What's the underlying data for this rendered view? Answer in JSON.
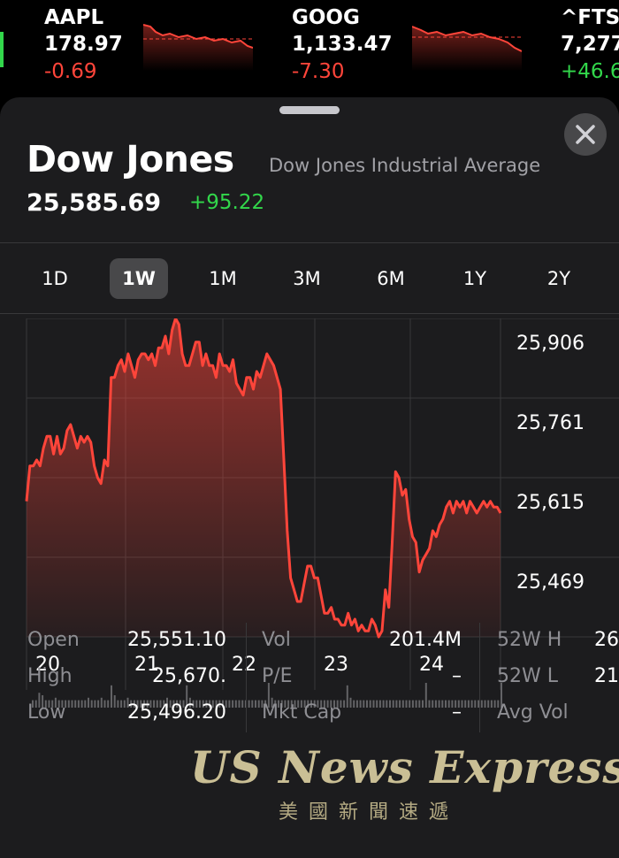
{
  "ticker": [
    {
      "symbol": "AAPL",
      "price": "178.97",
      "change": "-0.69",
      "direction": "down"
    },
    {
      "symbol": "GOOG",
      "price": "1,133.47",
      "change": "-7.30",
      "direction": "down"
    },
    {
      "symbol": "^FTSE",
      "price": "7,277",
      "change": "+46.6",
      "direction": "up"
    }
  ],
  "header": {
    "title": "Dow Jones",
    "full_name": "Dow Jones Industrial Average",
    "price": "25,585.69",
    "change": "+95.22"
  },
  "tabs": [
    {
      "label": "1D",
      "selected": false
    },
    {
      "label": "1W",
      "selected": true
    },
    {
      "label": "1M",
      "selected": false
    },
    {
      "label": "3M",
      "selected": false
    },
    {
      "label": "6M",
      "selected": false
    },
    {
      "label": "1Y",
      "selected": false
    },
    {
      "label": "2Y",
      "selected": false
    }
  ],
  "chart_data": {
    "type": "area",
    "x_labels": [
      "20",
      "21",
      "22",
      "23",
      "24"
    ],
    "y_ticks": [
      "25,906",
      "25,761",
      "25,615",
      "25,469"
    ],
    "ylim": [
      25400,
      25940
    ],
    "color": "#ff453a",
    "y": [
      25630,
      25690,
      25690,
      25700,
      25690,
      25720,
      25740,
      25740,
      25710,
      25740,
      25710,
      25720,
      25750,
      25760,
      25740,
      25720,
      25740,
      25730,
      25740,
      25730,
      25690,
      25670,
      25660,
      25700,
      25690,
      25840,
      25840,
      25860,
      25870,
      25850,
      25880,
      25860,
      25840,
      25870,
      25880,
      25880,
      25870,
      25880,
      25860,
      25890,
      25890,
      25910,
      25880,
      25920,
      25940,
      25930,
      25880,
      25860,
      25860,
      25880,
      25900,
      25900,
      25860,
      25880,
      25860,
      25860,
      25840,
      25880,
      25860,
      25860,
      25850,
      25870,
      25830,
      25820,
      25810,
      25840,
      25840,
      25820,
      25850,
      25840,
      25860,
      25880,
      25870,
      25860,
      25840,
      25820,
      25700,
      25580,
      25500,
      25480,
      25460,
      25460,
      25490,
      25520,
      25520,
      25500,
      25500,
      25470,
      25440,
      25440,
      25450,
      25430,
      25430,
      25420,
      25420,
      25440,
      25420,
      25430,
      25410,
      25420,
      25410,
      25410,
      25430,
      25420,
      25400,
      25410,
      25480,
      25450,
      25560,
      25680,
      25670,
      25640,
      25650,
      25600,
      25570,
      25560,
      25510,
      25530,
      25540,
      25550,
      25580,
      25570,
      25590,
      25600,
      25620,
      25630,
      25610,
      25630,
      25620,
      25630,
      25610,
      25630,
      25620,
      25610,
      25620,
      25630,
      25620,
      25630,
      25620,
      25620,
      25610
    ],
    "volume_bars": [
      0.3,
      0.3,
      0.6,
      0.5,
      0.3,
      0.3,
      0.3,
      0.4,
      0.3,
      0.3,
      0.3,
      0.3,
      0.3,
      0.3,
      0.3,
      0.3,
      0.3,
      0.4,
      0.3,
      0.3,
      0.3,
      0.4,
      0.3,
      0.3,
      0.9,
      0.5,
      0.3,
      0.3,
      0.3,
      0.4,
      0.3,
      0.3,
      0.3,
      0.3,
      0.3,
      0.3,
      0.3,
      0.3,
      0.3,
      0.3,
      0.3,
      0.4,
      0.3,
      0.3,
      0.3,
      0.3,
      0.3,
      0.9,
      0.4,
      0.3,
      0.3,
      0.3,
      0.3,
      0.3,
      0.3,
      0.3,
      0.3,
      0.3,
      0.3,
      0.3,
      0.3,
      0.3,
      0.3,
      0.3,
      0.3,
      0.3,
      0.3,
      0.3,
      0.3,
      0.3,
      0.3,
      0.3,
      1.0,
      0.4,
      0.3,
      0.3,
      0.3,
      0.3,
      0.3,
      0.3,
      0.3,
      0.3,
      0.3,
      0.3,
      0.3,
      0.3,
      0.3,
      0.3,
      0.3,
      0.3,
      0.3,
      0.3,
      0.3,
      0.3,
      0.3,
      0.3,
      0.9,
      0.4,
      0.3,
      0.3,
      0.3,
      0.3,
      0.3,
      0.3,
      0.3,
      0.3,
      0.3,
      0.3,
      0.3,
      0.3,
      0.3,
      0.3,
      0.3,
      0.3,
      0.3,
      0.3,
      0.3,
      0.3,
      0.3,
      0.3,
      1.0,
      0.3,
      0.3,
      0.3,
      0.3,
      0.3,
      0.3,
      0.3,
      0.3,
      0.3,
      0.3,
      0.3,
      0.3,
      0.3,
      0.3,
      0.3,
      0.3,
      0.3,
      0.3,
      0.3,
      0.3,
      0.3,
      0.3,
      1.0
    ]
  },
  "stats": {
    "rows": [
      {
        "l1": "Open",
        "v1": "25,551.10",
        "l2": "Vol",
        "v2": "201.4M",
        "l3": "52W H",
        "v3": "26"
      },
      {
        "l1": "High",
        "v1": "25,670.",
        "l2": "P/E",
        "v2": "–",
        "l3": "52W L",
        "v3": "21"
      },
      {
        "l1": "Low",
        "v1": "25,496.20",
        "l2": "Mkt Cap",
        "v2": "–",
        "l3": "Avg Vol",
        "v3": ""
      }
    ]
  },
  "watermark": {
    "text": "US News Express",
    "chinese": "美國新聞速遞"
  }
}
